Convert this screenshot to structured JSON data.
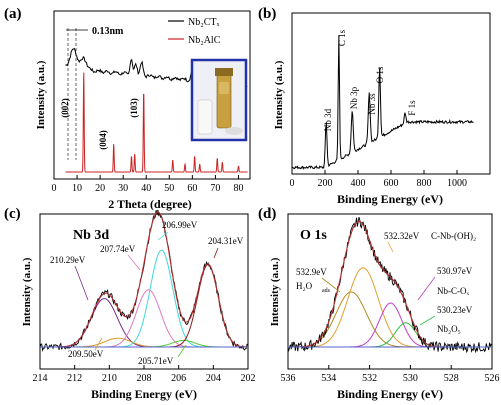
{
  "panels": [
    {
      "id": "a",
      "letter": "(a)",
      "xlabel": "2 Theta (degree)",
      "ylabel": "Intensity (a.u.)",
      "xlim": [
        0,
        85
      ],
      "xticks": [
        "0",
        "10",
        "20",
        "30",
        "40",
        "50",
        "60",
        "70",
        "80"
      ],
      "xticks_num": [
        0,
        10,
        20,
        30,
        40,
        50,
        60,
        70,
        80
      ],
      "legend": [
        {
          "label": "Nb₂CTₓ",
          "color": "#000000"
        },
        {
          "label": "Nb₂AlC",
          "color": "#cc2222"
        }
      ],
      "annotations": [
        "0.13nm",
        "(002)",
        "(004)",
        "(103)"
      ],
      "colors": {
        "top": "#000000",
        "bottom": "#cc2222"
      }
    },
    {
      "id": "b",
      "letter": "(b)",
      "xlabel": "Binding Energy (eV)",
      "ylabel": "Intensity (a.u.)",
      "xlim": [
        0,
        1200
      ],
      "xticks": [
        "0",
        "200",
        "400",
        "600",
        "800",
        "1000"
      ],
      "xticks_num": [
        0,
        200,
        400,
        600,
        800,
        1000
      ],
      "peaks": [
        "Nb 3d",
        "C 1s",
        "Nb 3p",
        "Nb 3s",
        "O 1s",
        "F 1s"
      ]
    },
    {
      "id": "c",
      "letter": "(c)",
      "title": "Nb 3d",
      "xlabel": "Binding Energy (eV)",
      "ylabel": "Intensity (a.u.)",
      "xlim": [
        214,
        202
      ],
      "xticks": [
        "214",
        "212",
        "210",
        "208",
        "206",
        "204",
        "202"
      ],
      "xticks_num": [
        214,
        212,
        210,
        208,
        206,
        204,
        202
      ],
      "peak_labels": [
        "210.29eV",
        "207.74eV",
        "206.99eV",
        "204.31eV",
        "209.50eV",
        "205.71eV"
      ],
      "components": [
        {
          "center": 210.29,
          "height": 0.44,
          "width": 0.75,
          "color": "#7b2d8e"
        },
        {
          "center": 209.5,
          "height": 0.08,
          "width": 0.75,
          "color": "#d99a2b"
        },
        {
          "center": 207.74,
          "height": 0.52,
          "width": 0.7,
          "color": "#e07ac0"
        },
        {
          "center": 206.99,
          "height": 0.88,
          "width": 0.65,
          "color": "#40d8d8"
        },
        {
          "center": 205.71,
          "height": 0.06,
          "width": 0.65,
          "color": "#55cc33"
        },
        {
          "center": 204.31,
          "height": 0.75,
          "width": 0.6,
          "color": "#8b1a1a"
        }
      ]
    },
    {
      "id": "d",
      "letter": "(d)",
      "title": "O 1s",
      "xlabel": "Binding Energy (eV)",
      "ylabel": "Intensity (a.u.)",
      "xlim": [
        536,
        526
      ],
      "xticks": [
        "536",
        "534",
        "532",
        "530",
        "528",
        "526"
      ],
      "xticks_num": [
        536,
        534,
        532,
        530,
        528,
        526
      ],
      "peak_labels": [
        "532.32eV",
        "C-Nb-(OH)₂",
        "532.9eV",
        "H₂O",
        "ads",
        "530.97eV",
        "Nb-C-Oₓ",
        "530.23eV",
        "Nb₂O₅"
      ],
      "components": [
        {
          "center": 532.9,
          "height": 0.5,
          "width": 0.75,
          "color": "#b08a20"
        },
        {
          "center": 532.32,
          "height": 0.72,
          "width": 0.75,
          "color": "#e0a030"
        },
        {
          "center": 530.97,
          "height": 0.4,
          "width": 0.55,
          "color": "#c040c0"
        },
        {
          "center": 530.23,
          "height": 0.22,
          "width": 0.5,
          "color": "#33bb44"
        }
      ]
    }
  ]
}
